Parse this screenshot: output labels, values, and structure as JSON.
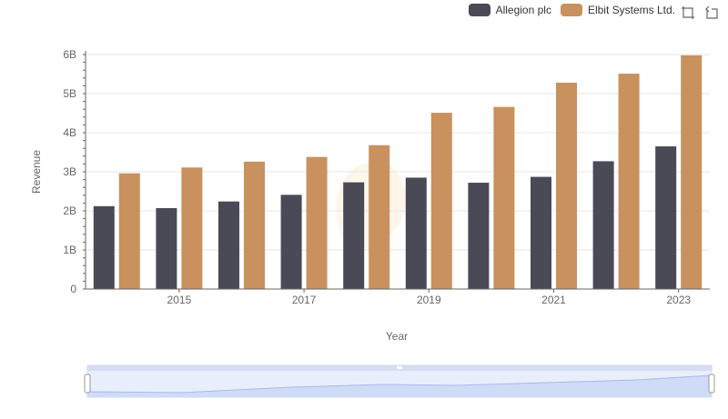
{
  "chart_data": {
    "type": "bar",
    "title": "",
    "xlabel": "Year",
    "ylabel": "Revenue",
    "categories": [
      "2014",
      "2015",
      "2016",
      "2017",
      "2018",
      "2019",
      "2020",
      "2021",
      "2022",
      "2023"
    ],
    "x_tick_labels": [
      "2015",
      "2017",
      "2019",
      "2021",
      "2023"
    ],
    "y_tick_labels": [
      "0",
      "1B",
      "2B",
      "3B",
      "4B",
      "5B",
      "6B"
    ],
    "ylim": [
      0,
      6000000000
    ],
    "grid": true,
    "legend_position": "top-right",
    "series": [
      {
        "name": "Allegion plc",
        "color": "#4a4a56",
        "values": [
          2120000000,
          2070000000,
          2240000000,
          2410000000,
          2730000000,
          2850000000,
          2720000000,
          2870000000,
          3270000000,
          3650000000
        ]
      },
      {
        "name": "Elbit Systems Ltd.",
        "color": "#c9915e",
        "values": [
          2960000000,
          3110000000,
          3260000000,
          3380000000,
          3680000000,
          4510000000,
          4660000000,
          5280000000,
          5510000000,
          5980000000
        ]
      }
    ]
  },
  "toolbox": {
    "zoom_icon": "zoom-icon",
    "restore_icon": "restore-icon"
  },
  "datazoom": {
    "start": 0,
    "end": 100
  }
}
